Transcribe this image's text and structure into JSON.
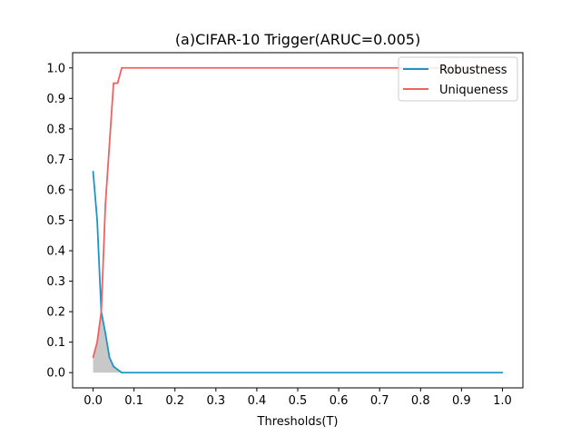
{
  "chart_data": {
    "type": "line",
    "title": "(a)CIFAR-10 Trigger(ARUC=0.005)",
    "xlabel": "Thresholds(T)",
    "ylabel": "",
    "xlim": [
      -0.05,
      1.05
    ],
    "ylim": [
      -0.05,
      1.05
    ],
    "xticks": [
      "0.0",
      "0.1",
      "0.2",
      "0.3",
      "0.4",
      "0.5",
      "0.6",
      "0.7",
      "0.8",
      "0.9",
      "1.0"
    ],
    "yticks": [
      "0.0",
      "0.1",
      "0.2",
      "0.3",
      "0.4",
      "0.5",
      "0.6",
      "0.7",
      "0.8",
      "0.9",
      "1.0"
    ],
    "legend_position": "top-right",
    "grid": false,
    "series": [
      {
        "name": "Robustness",
        "color": "#1f93c9",
        "x": [
          0.0,
          0.01,
          0.02,
          0.03,
          0.04,
          0.05,
          0.06,
          0.07,
          0.08,
          0.1,
          0.2,
          0.3,
          0.4,
          0.5,
          0.6,
          0.7,
          0.8,
          0.9,
          1.0
        ],
        "y": [
          0.66,
          0.5,
          0.2,
          0.13,
          0.05,
          0.02,
          0.01,
          0.0,
          0.0,
          0.0,
          0.0,
          0.0,
          0.0,
          0.0,
          0.0,
          0.0,
          0.0,
          0.0,
          0.0
        ]
      },
      {
        "name": "Uniqueness",
        "color": "#f0625f",
        "x": [
          0.0,
          0.01,
          0.02,
          0.03,
          0.04,
          0.05,
          0.06,
          0.07,
          0.08,
          0.1,
          0.2,
          0.3,
          0.4,
          0.5,
          0.6,
          0.7,
          0.8,
          0.9,
          1.0
        ],
        "y": [
          0.05,
          0.1,
          0.2,
          0.55,
          0.75,
          0.95,
          0.95,
          1.0,
          1.0,
          1.0,
          1.0,
          1.0,
          1.0,
          1.0,
          1.0,
          1.0,
          1.0,
          1.0,
          1.0
        ]
      }
    ],
    "shaded_area": {
      "description": "overlap under both curves",
      "color": "#c8c8c8"
    }
  }
}
